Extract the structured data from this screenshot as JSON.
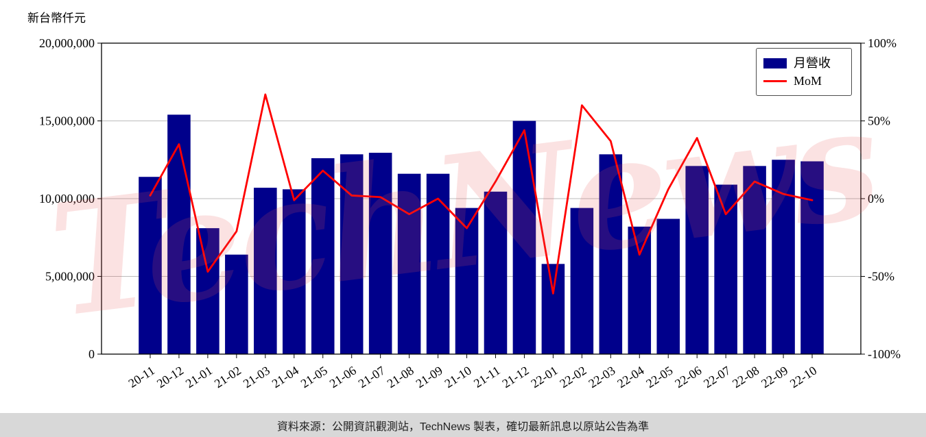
{
  "page": {
    "unit_label": "新台幣仟元",
    "watermark_text": "TechNews",
    "footer_text": "資料來源：公開資訊觀測站，TechNews 製表，確切最新訊息以原站公告為準"
  },
  "chart_data": {
    "type": "bar",
    "title": "",
    "categories": [
      "20-11",
      "20-12",
      "21-01",
      "21-02",
      "21-03",
      "21-04",
      "21-05",
      "21-06",
      "21-07",
      "21-08",
      "21-09",
      "21-10",
      "21-11",
      "21-12",
      "22-01",
      "22-02",
      "22-03",
      "22-04",
      "22-05",
      "22-06",
      "22-07",
      "22-08",
      "22-09",
      "22-10"
    ],
    "series": [
      {
        "name": "月營收",
        "type": "bar",
        "axis": "left",
        "color": "#00008B",
        "values": [
          11400000,
          15400000,
          8100000,
          6400000,
          10700000,
          10600000,
          12600000,
          12850000,
          12950000,
          11600000,
          11600000,
          9400000,
          10450000,
          15000000,
          5800000,
          9400000,
          12850000,
          8200000,
          8700000,
          12100000,
          10900000,
          12100000,
          12500000,
          12400000
        ]
      },
      {
        "name": "MoM",
        "type": "line",
        "axis": "right",
        "color": "#FF0000",
        "values": [
          2,
          35,
          -47,
          -21,
          67,
          -1,
          18,
          2,
          1,
          -10,
          0,
          -19,
          11,
          44,
          -61,
          60,
          37,
          -36,
          6,
          39,
          -10,
          11,
          3,
          -1
        ]
      }
    ],
    "left_axis": {
      "label": "新台幣仟元",
      "range": [
        0,
        20000000
      ],
      "ticks": [
        0,
        5000000,
        10000000,
        15000000,
        20000000
      ]
    },
    "right_axis": {
      "range": [
        -100,
        100
      ],
      "ticks": [
        -100,
        -50,
        0,
        50,
        100
      ],
      "tick_suffix": "%"
    },
    "grid": true,
    "legend_position": "upper right"
  }
}
